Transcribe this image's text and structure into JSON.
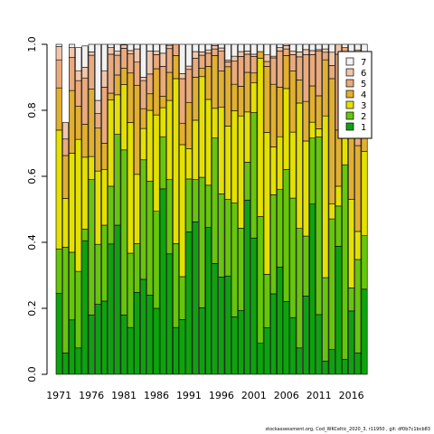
{
  "footer_text": "stockassessment.org, Cod_WKCeltic_2020_3, r11950 , git: df0b7c1bcb83",
  "chart_data": {
    "type": "bar",
    "stacked": true,
    "years": [
      1971,
      1972,
      1973,
      1974,
      1975,
      1976,
      1977,
      1978,
      1979,
      1980,
      1981,
      1982,
      1983,
      1984,
      1985,
      1986,
      1987,
      1988,
      1989,
      1990,
      1991,
      1992,
      1993,
      1994,
      1995,
      1996,
      1997,
      1998,
      1999,
      2000,
      2001,
      2002,
      2003,
      2004,
      2005,
      2006,
      2007,
      2008,
      2009,
      2010,
      2011,
      2012,
      2013,
      2014,
      2015,
      2016,
      2017,
      2018
    ],
    "x_tick_labels": [
      "1971",
      "1976",
      "1981",
      "1986",
      "1991",
      "1996",
      "2001",
      "2006",
      "2011",
      "2016"
    ],
    "ylim": [
      0,
      1
    ],
    "y_tick_labels": [
      "0.0",
      "0.2",
      "0.4",
      "0.6",
      "0.8",
      "1.0"
    ],
    "legend_position": "top-right",
    "series": [
      {
        "name": "1",
        "color": "#0ea30e",
        "values": [
          0.245,
          0.065,
          0.165,
          0.08,
          0.405,
          0.18,
          0.212,
          0.222,
          0.395,
          0.452,
          0.18,
          0.142,
          0.248,
          0.288,
          0.24,
          0.2,
          0.562,
          0.365,
          0.142,
          0.166,
          0.432,
          0.462,
          0.202,
          0.445,
          0.336,
          0.295,
          0.298,
          0.174,
          0.193,
          0.528,
          0.413,
          0.094,
          0.141,
          0.244,
          0.325,
          0.221,
          0.172,
          0.08,
          0.237,
          0.516,
          0.181,
          0.04,
          0.075,
          0.388,
          0.045,
          0.192,
          0.065,
          0.258
        ]
      },
      {
        "name": "2",
        "color": "#66c60c",
        "values": [
          0.135,
          0.32,
          0.205,
          0.232,
          0.035,
          0.41,
          0.182,
          0.23,
          0.175,
          0.275,
          0.5,
          0.225,
          0.148,
          0.362,
          0.345,
          0.294,
          0.158,
          0.225,
          0.254,
          0.13,
          0.16,
          0.128,
          0.395,
          0.128,
          0.38,
          0.252,
          0.232,
          0.345,
          0.25,
          0.115,
          0.38,
          0.384,
          0.162,
          0.3,
          0.235,
          0.4,
          0.362,
          0.362,
          0.182,
          0.2,
          0.538,
          0.253,
          0.396,
          0.122,
          0.59,
          0.07,
          0.283,
          0.162
        ]
      },
      {
        "name": "3",
        "color": "#e4e100",
        "values": [
          0.36,
          0.148,
          0.3,
          0.4,
          0.218,
          0.07,
          0.222,
          0.168,
          0.262,
          0.12,
          0.198,
          0.396,
          0.21,
          0.095,
          0.215,
          0.292,
          0.088,
          0.24,
          0.5,
          0.4,
          0.092,
          0.18,
          0.305,
          0.26,
          0.09,
          0.262,
          0.222,
          0.28,
          0.34,
          0.152,
          0.09,
          0.48,
          0.43,
          0.145,
          0.16,
          0.245,
          0.2,
          0.38,
          0.288,
          0.048,
          0.025,
          0.49,
          0.045,
          0.06,
          0.265,
          0.268,
          0.085,
          0.255
        ]
      },
      {
        "name": "4",
        "color": "#e2b030",
        "values": [
          0.128,
          0.13,
          0.19,
          0.1,
          0.1,
          0.205,
          0.13,
          0.08,
          0.02,
          0.06,
          0.05,
          0.15,
          0.27,
          0.06,
          0.05,
          0.14,
          0.035,
          0.085,
          0.07,
          0.065,
          0.14,
          0.13,
          0.025,
          0.1,
          0.16,
          0.11,
          0.18,
          0.08,
          0.09,
          0.12,
          0.03,
          0.02,
          0.2,
          0.19,
          0.15,
          0.1,
          0.185,
          0.07,
          0.12,
          0.11,
          0.1,
          0.17,
          0.38,
          0.17,
          0.04,
          0.25,
          0.26,
          0.29
        ]
      },
      {
        "name": "5",
        "color": "#eaaa7c",
        "values": [
          0.085,
          0.05,
          0.1,
          0.078,
          0.14,
          0.102,
          0.044,
          0.17,
          0.118,
          0.06,
          0.06,
          0.058,
          0.07,
          0.085,
          0.06,
          0.043,
          0.09,
          0.072,
          0.034,
          0.135,
          0.1,
          0.058,
          0.04,
          0.04,
          0.02,
          0.06,
          0.015,
          0.07,
          0.09,
          0.055,
          0.05,
          0.0,
          0.015,
          0.08,
          0.11,
          0.02,
          0.05,
          0.07,
          0.142,
          0.095,
          0.135,
          0.023,
          0.04,
          0.23,
          0.05,
          0.19,
          0.27,
          0.005
        ]
      },
      {
        "name": "6",
        "color": "#f0c7ac",
        "values": [
          0.04,
          0.05,
          0.03,
          0.03,
          0.032,
          0.01,
          0.04,
          0.05,
          0.02,
          0.012,
          0.01,
          0.01,
          0.04,
          0.01,
          0.07,
          0.01,
          0.04,
          0.01,
          0.0,
          0.015,
          0.01,
          0.02,
          0.01,
          0.01,
          0.01,
          0.01,
          0.005,
          0.015,
          0.015,
          0.01,
          0.007,
          0.0,
          0.02,
          0.005,
          0.01,
          0.01,
          0.01,
          0.015,
          0.015,
          0.012,
          0.005,
          0.01,
          0.04,
          0.03,
          0.0,
          0.0,
          0.02,
          0.0
        ]
      },
      {
        "name": "7",
        "color": "#f2f2f2",
        "values": [
          0.007,
          0.0,
          0.03,
          0.07,
          0.065,
          0.023,
          0.17,
          0.08,
          0.01,
          0.021,
          0.002,
          0.019,
          0.014,
          0.1,
          0.02,
          0.021,
          0.027,
          0.013,
          0.0,
          0.089,
          0.066,
          0.022,
          0.023,
          0.017,
          0.004,
          0.011,
          0.048,
          0.036,
          0.022,
          0.02,
          0.03,
          0.022,
          0.032,
          0.036,
          0.01,
          0.004,
          0.021,
          0.023,
          0.016,
          0.019,
          0.016,
          0.014,
          0.024,
          0.0,
          0.01,
          0.03,
          0.017,
          0.03
        ]
      }
    ]
  }
}
